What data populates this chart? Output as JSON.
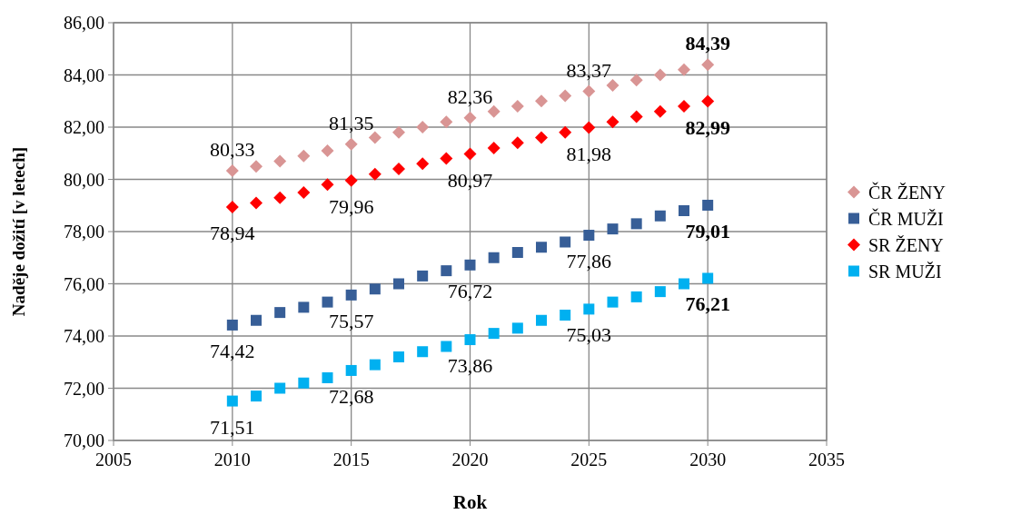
{
  "chart_data": {
    "type": "scatter",
    "xlabel": "Rok",
    "ylabel": "Naděje dožití [v letech]",
    "x": [
      2010,
      2011,
      2012,
      2013,
      2014,
      2015,
      2016,
      2017,
      2018,
      2019,
      2020,
      2021,
      2022,
      2023,
      2024,
      2025,
      2026,
      2027,
      2028,
      2029,
      2030
    ],
    "xlim": [
      2005,
      2035
    ],
    "xticks": [
      2005,
      2010,
      2015,
      2020,
      2025,
      2030,
      2035
    ],
    "ylim": [
      70,
      86
    ],
    "yticks": [
      {
        "value": 70,
        "label": "70,00"
      },
      {
        "value": 72,
        "label": "72,00"
      },
      {
        "value": 74,
        "label": "74,00"
      },
      {
        "value": 76,
        "label": "76,00"
      },
      {
        "value": 78,
        "label": "78,00"
      },
      {
        "value": 80,
        "label": "80,00"
      },
      {
        "value": 82,
        "label": "82,00"
      },
      {
        "value": 84,
        "label": "84,00"
      },
      {
        "value": 86,
        "label": "86,00"
      }
    ],
    "grid": true,
    "legend": "right",
    "series": [
      {
        "name": "ČR ŽENY",
        "color": "#d99594",
        "marker": "diamond",
        "values": [
          80.33,
          80.5,
          80.7,
          80.9,
          81.1,
          81.35,
          81.6,
          81.8,
          82.0,
          82.2,
          82.36,
          82.6,
          82.8,
          83.0,
          83.2,
          83.37,
          83.6,
          83.8,
          84.0,
          84.2,
          84.39
        ],
        "value_labels": [
          "80,33",
          null,
          null,
          null,
          null,
          "81,35",
          null,
          null,
          null,
          null,
          "82,36",
          null,
          null,
          null,
          null,
          "83,37",
          null,
          null,
          null,
          null,
          "84,39"
        ]
      },
      {
        "name": "ČR MUŽI",
        "color": "#375e97",
        "marker": "square",
        "values": [
          74.42,
          74.6,
          74.9,
          75.1,
          75.3,
          75.57,
          75.8,
          76.0,
          76.3,
          76.5,
          76.72,
          77.0,
          77.2,
          77.4,
          77.6,
          77.86,
          78.1,
          78.3,
          78.6,
          78.8,
          79.01
        ],
        "value_labels": [
          "74,42",
          null,
          null,
          null,
          null,
          "75,57",
          null,
          null,
          null,
          null,
          "76,72",
          null,
          null,
          null,
          null,
          "77,86",
          null,
          null,
          null,
          null,
          "79,01"
        ]
      },
      {
        "name": "SR ŽENY",
        "color": "#ff0000",
        "marker": "diamond",
        "values": [
          78.94,
          79.1,
          79.3,
          79.5,
          79.8,
          79.96,
          80.2,
          80.4,
          80.6,
          80.8,
          80.97,
          81.2,
          81.4,
          81.6,
          81.8,
          81.98,
          82.2,
          82.4,
          82.6,
          82.8,
          82.99
        ],
        "value_labels": [
          "78,94",
          null,
          null,
          null,
          null,
          "79,96",
          null,
          null,
          null,
          null,
          "80,97",
          null,
          null,
          null,
          null,
          "81,98",
          null,
          null,
          null,
          null,
          "82,99"
        ]
      },
      {
        "name": "SR MUŽI",
        "color": "#00b0f0",
        "marker": "square",
        "values": [
          71.51,
          71.7,
          72.0,
          72.2,
          72.4,
          72.68,
          72.9,
          73.2,
          73.4,
          73.6,
          73.86,
          74.1,
          74.3,
          74.6,
          74.8,
          75.03,
          75.3,
          75.5,
          75.7,
          76.0,
          76.21
        ],
        "value_labels": [
          "71,51",
          null,
          null,
          null,
          null,
          "72,68",
          null,
          null,
          null,
          null,
          "73,86",
          null,
          null,
          null,
          null,
          "75,03",
          null,
          null,
          null,
          null,
          "76,21"
        ]
      }
    ]
  }
}
